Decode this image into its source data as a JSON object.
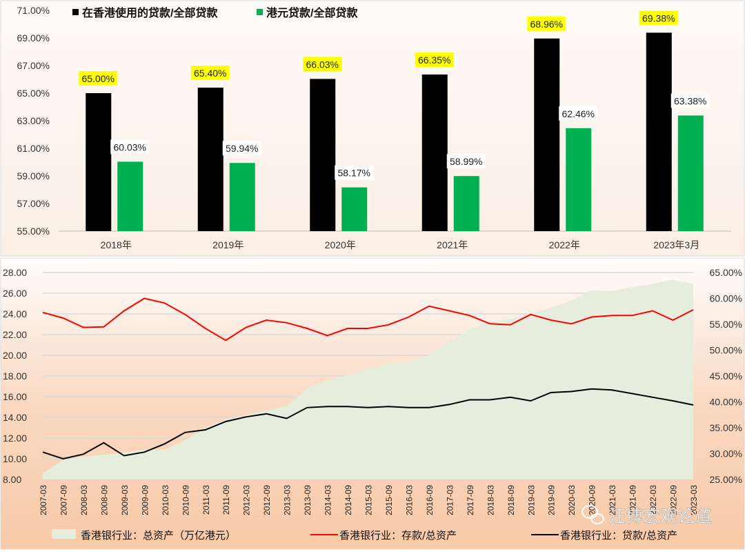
{
  "chart_data": [
    {
      "type": "bar",
      "categories": [
        "2018年",
        "2019年",
        "2020年",
        "2021年",
        "2022年",
        "2023年3月"
      ],
      "series": [
        {
          "name": "在香港使用的贷款/全部贷款",
          "values": [
            65.0,
            65.4,
            66.03,
            66.35,
            68.96,
            69.38
          ],
          "color": "#000000",
          "labels": [
            "65.00%",
            "65.40%",
            "66.03%",
            "66.35%",
            "68.96%",
            "69.38%"
          ],
          "label_highlight": "#ffff00"
        },
        {
          "name": "港元贷款/全部贷款",
          "values": [
            60.03,
            59.94,
            58.17,
            58.99,
            62.46,
            63.38
          ],
          "color": "#00b050",
          "labels": [
            "60.03%",
            "59.94%",
            "58.17%",
            "58.99%",
            "62.46%",
            "63.38%"
          ],
          "label_highlight": "#ffffff"
        }
      ],
      "ylim": [
        55,
        71
      ],
      "yticks": [
        "55.00%",
        "57.00%",
        "59.00%",
        "61.00%",
        "63.00%",
        "65.00%",
        "67.00%",
        "69.00%",
        "71.00%"
      ],
      "legend": "top-left",
      "grid": false
    },
    {
      "type": "line",
      "x": [
        "2007-03",
        "2007-09",
        "2008-03",
        "2008-09",
        "2009-03",
        "2009-09",
        "2010-03",
        "2010-09",
        "2011-03",
        "2011-09",
        "2012-03",
        "2012-09",
        "2013-03",
        "2013-09",
        "2014-03",
        "2014-09",
        "2015-03",
        "2015-09",
        "2016-03",
        "2016-09",
        "2017-03",
        "2017-09",
        "2018-03",
        "2018-09",
        "2019-03",
        "2019-09",
        "2020-03",
        "2020-09",
        "2021-03",
        "2021-09",
        "2022-03",
        "2022-09",
        "2023-03"
      ],
      "series": [
        {
          "name": "香港银行业：总资产（万亿港元）",
          "type": "area",
          "axis": "left",
          "color": "#e6eddd",
          "values": [
            8.6,
            9.9,
            10.2,
            10.4,
            10.6,
            10.9,
            10.9,
            11.8,
            13.0,
            13.8,
            14.2,
            14.7,
            15.1,
            16.8,
            17.6,
            18.1,
            18.7,
            19.2,
            19.3,
            20.0,
            21.4,
            22.5,
            23.2,
            23.5,
            24.0,
            24.6,
            25.3,
            26.3,
            26.2,
            26.6,
            26.9,
            27.3,
            26.9
          ]
        },
        {
          "name": "香港银行业：存款/总资产",
          "type": "line",
          "axis": "right",
          "color": "#ff0000",
          "values": [
            57.3,
            56.2,
            54.4,
            54.5,
            57.6,
            60.0,
            59.1,
            56.9,
            54.2,
            51.9,
            54.4,
            55.8,
            55.3,
            54.2,
            52.8,
            54.2,
            54.2,
            54.9,
            56.4,
            58.5,
            57.6,
            56.7,
            55.1,
            54.9,
            56.9,
            55.8,
            55.1,
            56.4,
            56.7,
            56.7,
            57.6,
            55.8,
            57.8
          ]
        },
        {
          "name": "香港银行业：贷款/总资产",
          "type": "line",
          "axis": "right",
          "color": "#000000",
          "values": [
            30.3,
            29.0,
            29.9,
            32.1,
            29.6,
            30.3,
            31.9,
            34.1,
            34.6,
            36.2,
            37.1,
            37.7,
            36.8,
            38.9,
            39.1,
            39.1,
            38.9,
            39.1,
            38.9,
            38.9,
            39.5,
            40.4,
            40.4,
            40.9,
            40.2,
            41.8,
            42.0,
            42.5,
            42.3,
            41.6,
            40.9,
            40.2,
            39.4
          ]
        }
      ],
      "ylim_left": [
        8,
        28
      ],
      "yticks_left": [
        "8.00",
        "10.00",
        "12.00",
        "14.00",
        "16.00",
        "18.00",
        "20.00",
        "22.00",
        "24.00",
        "26.00",
        "28.00"
      ],
      "ylim_right": [
        25,
        65
      ],
      "yticks_right": [
        "25.00%",
        "30.00%",
        "35.00%",
        "40.00%",
        "45.00%",
        "50.00%",
        "55.00%",
        "60.00%",
        "65.00%"
      ],
      "legend": "bottom",
      "grid": true
    }
  ],
  "watermark": "汪博宏观论道"
}
